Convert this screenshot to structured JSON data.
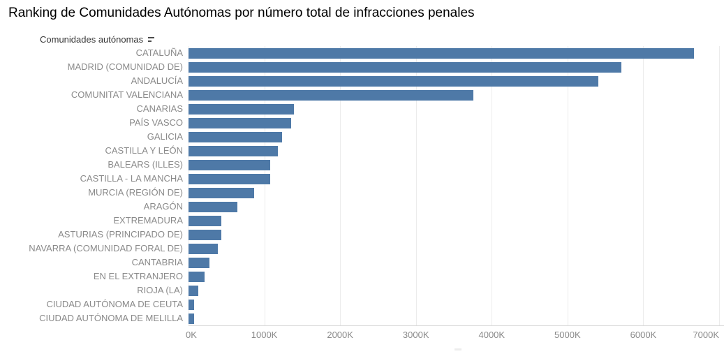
{
  "title": "Ranking de Comunidades Autónomas por número total de infracciones penales",
  "header": {
    "field_label": "Comunidades autónomas",
    "sort_icon": "sort-descending"
  },
  "colors": {
    "bar": "#4e79a7",
    "gridline": "#ececec",
    "axis_line": "#d9d9d9",
    "label_text": "#8a8a8a",
    "title_text": "#000000"
  },
  "chart_data": {
    "type": "bar",
    "orientation": "horizontal",
    "title": "Ranking de Comunidades Autónomas por número total de infracciones penales",
    "ylabel": "Comunidades autónomas",
    "xlabel": "",
    "grid": true,
    "legend": "none",
    "sort": "descending",
    "xlim": [
      0,
      7000000
    ],
    "x_ticks": [
      0,
      1000000,
      2000000,
      3000000,
      4000000,
      5000000,
      6000000,
      7000000
    ],
    "x_tick_labels": [
      "0K",
      "1000K",
      "2000K",
      "3000K",
      "4000K",
      "5000K",
      "6000K",
      "7000K"
    ],
    "categories": [
      "CATALUÑA",
      "MADRID (COMUNIDAD DE)",
      "ANDALUCÍA",
      "COMUNITAT VALENCIANA",
      "CANARIAS",
      "PAÍS VASCO",
      "GALICIA",
      "CASTILLA Y LEÓN",
      "BALEARS (ILLES)",
      "CASTILLA - LA MANCHA",
      "MURCIA (REGIÓN DE)",
      "ARAGÓN",
      "EXTREMADURA",
      "ASTURIAS (PRINCIPADO DE)",
      "NAVARRA (COMUNIDAD FORAL DE)",
      "CANTABRIA",
      "EN EL EXTRANJERO",
      "RIOJA (LA)",
      "CIUDAD AUTÓNOMA DE CEUTA",
      "CIUDAD AUTÓNOMA DE MELILLA"
    ],
    "values": [
      6670000,
      5715000,
      5410000,
      3760000,
      1395000,
      1355000,
      1230000,
      1180000,
      1075000,
      1080000,
      870000,
      645000,
      430000,
      430000,
      390000,
      280000,
      215000,
      130000,
      73000,
      75000
    ]
  }
}
